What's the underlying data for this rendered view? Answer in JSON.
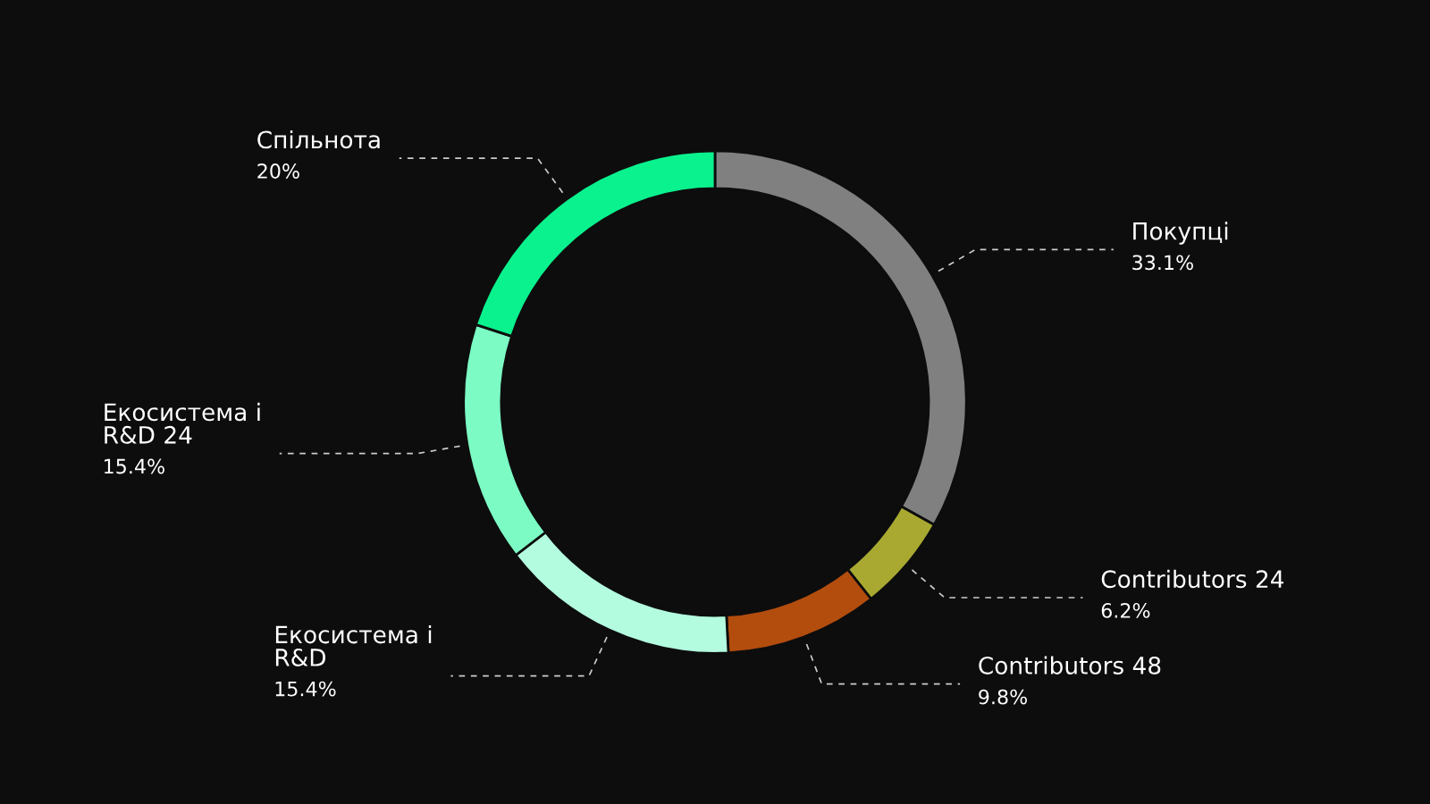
{
  "chart_data": {
    "type": "donut",
    "categories": [
      "Покупці",
      "Contributors 24",
      "Contributors 48",
      "Екосистема і\nR&D",
      "Екосистема і\nR&D 24",
      "Спільнота"
    ],
    "values": [
      33.1,
      6.2,
      9.8,
      15.4,
      15.4,
      20
    ],
    "colors": [
      "#808080",
      "#a9a932",
      "#b34d0e",
      "#b3fce0",
      "#7cfcc4",
      "#0af28e"
    ],
    "value_labels": [
      "33.1%",
      "6.2%",
      "9.8%",
      "15.4%",
      "15.4%",
      "20%"
    ],
    "legend": false
  }
}
